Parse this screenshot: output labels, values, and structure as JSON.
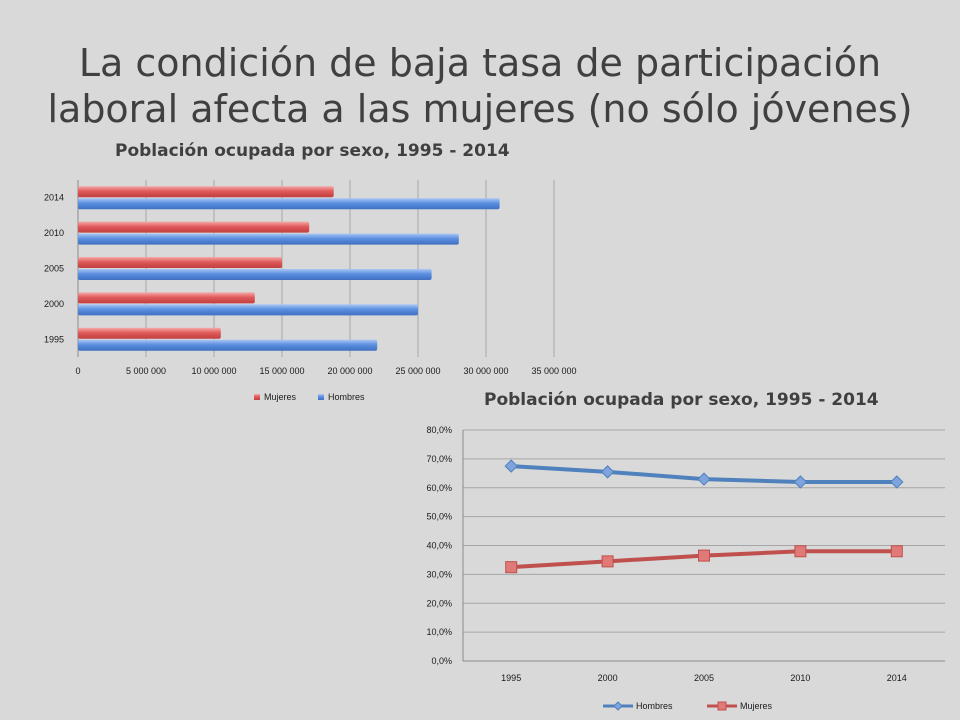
{
  "slide": {
    "title_line1": "La condición de baja tasa de participación",
    "title_line2": "laboral afecta a las mujeres (no sólo jóvenes)"
  },
  "colors": {
    "hombres": "#5b8fe0",
    "mujeres": "#e05b5b",
    "line_hombres": "#4f81bd",
    "line_mujeres": "#c0504d"
  },
  "chart_data": [
    {
      "type": "bar",
      "orientation": "horizontal",
      "title": "Población ocupada por sexo, 1995 - 2014",
      "categories": [
        "1995",
        "2000",
        "2005",
        "2010",
        "2014"
      ],
      "series": [
        {
          "name": "Mujeres",
          "values": [
            10500000,
            13000000,
            15000000,
            17000000,
            18800000
          ]
        },
        {
          "name": "Hombres",
          "values": [
            22000000,
            25000000,
            26000000,
            28000000,
            31000000
          ]
        }
      ],
      "xlim": [
        0,
        35000000
      ],
      "xticks": [
        "0",
        "5 000 000",
        "10 000 000",
        "15 000 000",
        "20 000 000",
        "25 000 000",
        "30 000 000",
        "35 000 000"
      ],
      "grid": "vertical",
      "legend": "bottom",
      "legend_order": [
        "Mujeres",
        "Hombres"
      ]
    },
    {
      "type": "line",
      "title": "Población ocupada por sexo, 1995 - 2014",
      "categories": [
        "1995",
        "2000",
        "2005",
        "2010",
        "2014"
      ],
      "series": [
        {
          "name": "Hombres",
          "marker": "diamond",
          "values": [
            67.5,
            65.5,
            63.0,
            62.0,
            62.0
          ]
        },
        {
          "name": "Mujeres",
          "marker": "square",
          "values": [
            32.5,
            34.5,
            36.5,
            38.0,
            38.0
          ]
        }
      ],
      "ylim": [
        0,
        80
      ],
      "yticks": [
        "0,0%",
        "10,0%",
        "20,0%",
        "30,0%",
        "40,0%",
        "50,0%",
        "60,0%",
        "70,0%",
        "80,0%"
      ],
      "grid": "horizontal",
      "legend": "bottom",
      "legend_order": [
        "Hombres",
        "Mujeres"
      ]
    }
  ]
}
